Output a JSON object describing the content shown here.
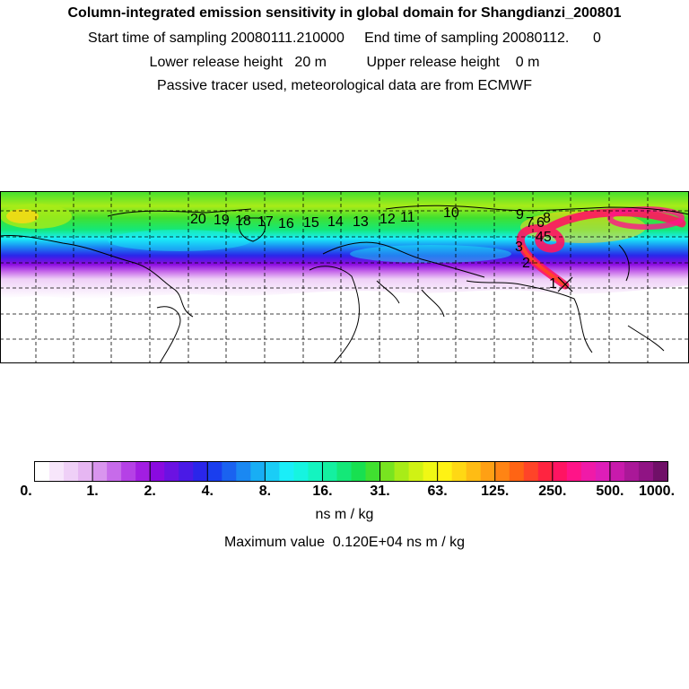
{
  "title": "Column-integrated emission sensitivity in global domain for Shangdianzi_200801",
  "sampling_line": "Start time of sampling 20080111.210000     End time of sampling 20080112.      0",
  "release_line": "Lower release height   20 m          Upper release height    0 m",
  "tracer_line": "Passive tracer used, meteorological data are from ECMWF",
  "map": {
    "station_marker": "x-mark",
    "trajectory_labels": [
      "1",
      "2",
      "3",
      "45",
      "6",
      "7",
      "8",
      "9",
      "10",
      "11",
      "12",
      "13",
      "14",
      "15",
      "16",
      "17",
      "18",
      "19",
      "20"
    ]
  },
  "colorbar": {
    "units": "ns m / kg",
    "tick_labels": [
      "0.",
      "1.",
      "2.",
      "4.",
      "8.",
      "16.",
      "31.",
      "63.",
      "125.",
      "250.",
      "500.",
      "1000."
    ],
    "colors": [
      "#ffffff",
      "#f7e6fb",
      "#efd0f7",
      "#e6b6f2",
      "#d995ee",
      "#c76bea",
      "#b541e6",
      "#a21ee2",
      "#8a0ae0",
      "#6b12e2",
      "#4a1ae6",
      "#2a26ea",
      "#1a3eee",
      "#1a62f0",
      "#1a88f2",
      "#18aef4",
      "#1acdf6",
      "#1aeef8",
      "#16f4e0",
      "#14f4c0",
      "#14f0a0",
      "#14e878",
      "#18e050",
      "#40e030",
      "#78e420",
      "#a8ec18",
      "#d0f214",
      "#f0f814",
      "#fff214",
      "#ffd814",
      "#ffbc14",
      "#ffa014",
      "#ff8414",
      "#ff6414",
      "#ff4428",
      "#ff2440",
      "#ff1462",
      "#ff1488",
      "#f01aa8",
      "#de1eb8",
      "#c81aac",
      "#aa1898",
      "#901484",
      "#701068"
    ],
    "max_value_text": "Maximum value  0.120E+04 ns m / kg"
  }
}
